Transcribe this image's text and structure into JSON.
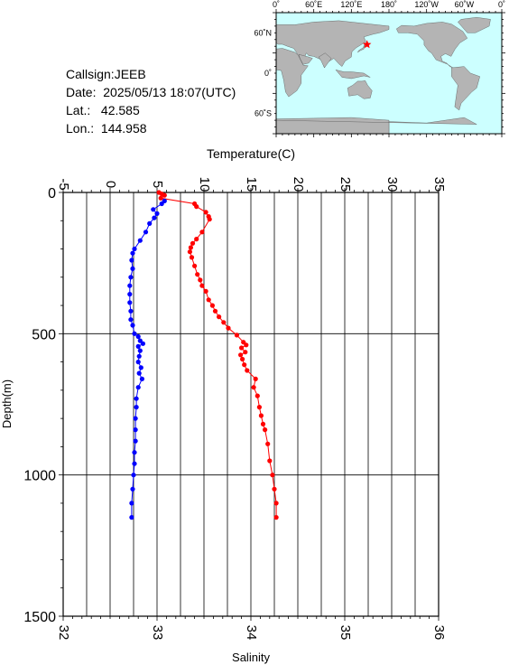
{
  "info": {
    "callsign": "Callsign:JEEB",
    "date": "Date:  2025/05/13 18:07(UTC)",
    "lat": "Lat.:   42.585",
    "lon": "Lon.:  144.958"
  },
  "map": {
    "top_labels": [
      "0˚",
      "60˚E",
      "120˚E",
      "180˚",
      "120˚W",
      "60˚W",
      "0˚"
    ],
    "left_labels": [
      "60˚N",
      "0˚",
      "60˚S"
    ],
    "ocean_color": "#ccffff",
    "land_color": "#b4b4b4",
    "marker_color": "#ff0000",
    "station": {
      "lat": 42.585,
      "lon": 144.958
    }
  },
  "chart_data": {
    "type": "line",
    "temperature_label": "Temperature(C)",
    "salinity_label": "Salinity",
    "depth_label": "Depth(m)",
    "temperature_ticks": [
      "-5",
      "0",
      "5",
      "10",
      "15",
      "20",
      "25",
      "30",
      "35"
    ],
    "salinity_ticks": [
      "32",
      "33",
      "34",
      "35",
      "36"
    ],
    "depth_ticks": [
      "0",
      "500",
      "1000",
      "1500"
    ],
    "temperature_range": [
      -5,
      35
    ],
    "salinity_range": [
      32,
      36
    ],
    "depth_range": [
      0,
      1500
    ],
    "grid": true,
    "series": [
      {
        "quantity": "temperature",
        "color": "#ff0000",
        "points": [
          [
            5.2,
            0
          ],
          [
            5.5,
            5
          ],
          [
            5.8,
            10
          ],
          [
            5.4,
            20
          ],
          [
            9.0,
            40
          ],
          [
            9.2,
            50
          ],
          [
            10.2,
            70
          ],
          [
            10.5,
            85
          ],
          [
            10.6,
            95
          ],
          [
            9.8,
            140
          ],
          [
            9.2,
            165
          ],
          [
            8.8,
            180
          ],
          [
            8.6,
            195
          ],
          [
            8.5,
            210
          ],
          [
            8.7,
            230
          ],
          [
            9.0,
            260
          ],
          [
            9.3,
            290
          ],
          [
            9.6,
            310
          ],
          [
            9.8,
            330
          ],
          [
            10.2,
            350
          ],
          [
            10.5,
            380
          ],
          [
            10.9,
            400
          ],
          [
            11.2,
            420
          ],
          [
            11.6,
            440
          ],
          [
            12.1,
            460
          ],
          [
            12.6,
            480
          ],
          [
            13.5,
            505
          ],
          [
            14.2,
            530
          ],
          [
            14.5,
            540
          ],
          [
            14.0,
            550
          ],
          [
            14.4,
            565
          ],
          [
            13.9,
            575
          ],
          [
            14.1,
            590
          ],
          [
            14.3,
            610
          ],
          [
            14.6,
            630
          ],
          [
            15.5,
            660
          ],
          [
            15.3,
            690
          ],
          [
            15.7,
            720
          ],
          [
            15.9,
            760
          ],
          [
            16.1,
            790
          ],
          [
            16.3,
            820
          ],
          [
            16.5,
            840
          ],
          [
            16.8,
            890
          ],
          [
            17.0,
            950
          ],
          [
            17.3,
            1000
          ],
          [
            17.5,
            1050
          ],
          [
            17.7,
            1100
          ],
          [
            17.7,
            1150
          ]
        ]
      },
      {
        "quantity": "salinity",
        "color": "#0000ff",
        "points": [
          [
            33.08,
            30
          ],
          [
            33.05,
            40
          ],
          [
            32.96,
            60
          ],
          [
            33.0,
            75
          ],
          [
            32.97,
            90
          ],
          [
            32.92,
            110
          ],
          [
            32.88,
            140
          ],
          [
            32.82,
            170
          ],
          [
            32.76,
            200
          ],
          [
            32.74,
            215
          ],
          [
            32.73,
            240
          ],
          [
            32.74,
            270
          ],
          [
            32.72,
            300
          ],
          [
            32.71,
            330
          ],
          [
            32.71,
            360
          ],
          [
            32.71,
            390
          ],
          [
            32.72,
            420
          ],
          [
            32.72,
            450
          ],
          [
            32.74,
            470
          ],
          [
            32.76,
            500
          ],
          [
            32.8,
            510
          ],
          [
            32.82,
            525
          ],
          [
            32.85,
            535
          ],
          [
            32.8,
            545
          ],
          [
            32.82,
            560
          ],
          [
            32.81,
            580
          ],
          [
            32.8,
            600
          ],
          [
            32.83,
            620
          ],
          [
            32.81,
            640
          ],
          [
            32.84,
            660
          ],
          [
            32.8,
            690
          ],
          [
            32.78,
            730
          ],
          [
            32.78,
            760
          ],
          [
            32.77,
            800
          ],
          [
            32.77,
            840
          ],
          [
            32.77,
            880
          ],
          [
            32.76,
            920
          ],
          [
            32.76,
            960
          ],
          [
            32.75,
            1000
          ],
          [
            32.74,
            1050
          ],
          [
            32.73,
            1100
          ],
          [
            32.73,
            1150
          ]
        ]
      }
    ]
  }
}
